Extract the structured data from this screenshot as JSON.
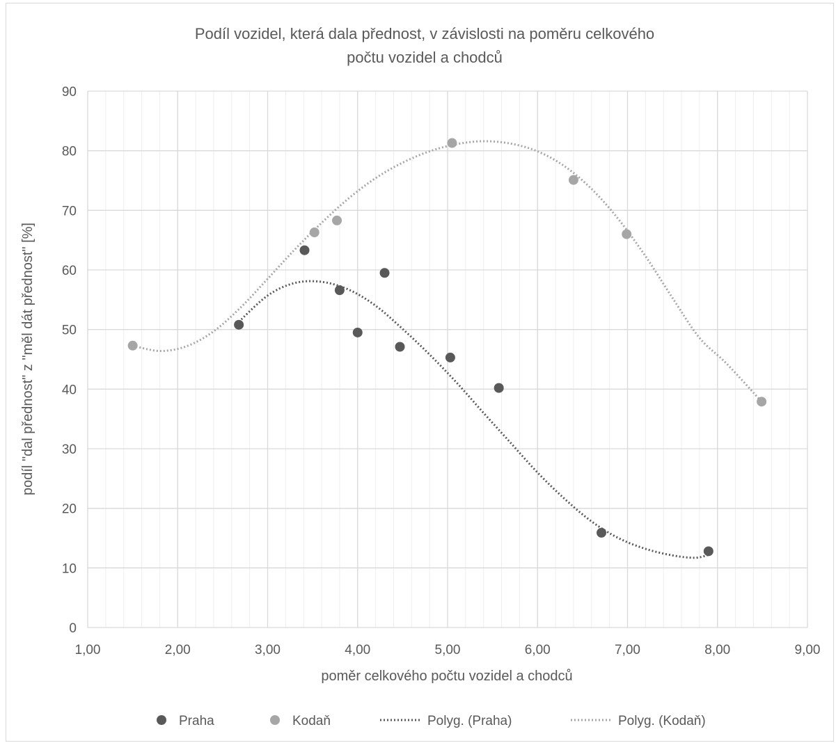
{
  "chart_data": {
    "type": "scatter",
    "title_lines": [
      "Podíl vozidel, která dala přednost, v závislosti na poměru celkového",
      "počtu vozidel a chodců"
    ],
    "xlabel": "poměr celkového počtu vozidel a chodců",
    "ylabel": "podíl \"dal přednost\" z \"měl dát přednost\" [%]",
    "xlim": [
      1,
      9
    ],
    "ylim": [
      0,
      90
    ],
    "x_ticks": [
      1,
      2,
      3,
      4,
      5,
      6,
      7,
      8,
      9
    ],
    "x_tick_labels": [
      "1,00",
      "2,00",
      "3,00",
      "4,00",
      "5,00",
      "6,00",
      "7,00",
      "8,00",
      "9,00"
    ],
    "y_ticks": [
      0,
      10,
      20,
      30,
      40,
      50,
      60,
      70,
      80,
      90
    ],
    "y_tick_labels": [
      "0",
      "10",
      "20",
      "30",
      "40",
      "50",
      "60",
      "70",
      "80",
      "90"
    ],
    "grid": true,
    "legend_position": "bottom",
    "series": [
      {
        "name": "Praha",
        "color": "#595959",
        "points": [
          [
            2.68,
            50.8
          ],
          [
            3.41,
            63.3
          ],
          [
            3.8,
            56.6
          ],
          [
            4.0,
            49.5
          ],
          [
            4.3,
            59.5
          ],
          [
            4.47,
            47.1
          ],
          [
            5.03,
            45.3
          ],
          [
            5.57,
            40.2
          ],
          [
            6.71,
            15.9
          ],
          [
            7.9,
            12.8
          ]
        ]
      },
      {
        "name": "Kodaň",
        "color": "#a6a6a6",
        "points": [
          [
            1.5,
            47.3
          ],
          [
            3.52,
            66.3
          ],
          [
            3.77,
            68.3
          ],
          [
            5.05,
            81.3
          ],
          [
            6.4,
            75.1
          ],
          [
            6.99,
            66.0
          ],
          [
            8.49,
            37.9
          ]
        ]
      }
    ],
    "trendlines": [
      {
        "name": "Polyg. (Praha)",
        "color": "#595959",
        "points": [
          [
            2.68,
            51.3
          ],
          [
            3.0,
            55.7
          ],
          [
            3.3,
            57.8
          ],
          [
            3.6,
            58.0
          ],
          [
            3.9,
            56.7
          ],
          [
            4.2,
            54.0
          ],
          [
            4.5,
            50.1
          ],
          [
            4.8,
            45.8
          ],
          [
            5.1,
            41.1
          ],
          [
            5.4,
            36.0
          ],
          [
            5.7,
            31.0
          ],
          [
            6.0,
            26.0
          ],
          [
            6.3,
            21.6
          ],
          [
            6.6,
            17.8
          ],
          [
            6.9,
            15.0
          ],
          [
            7.2,
            13.2
          ],
          [
            7.5,
            12.1
          ],
          [
            7.75,
            11.7
          ],
          [
            7.9,
            12.2
          ]
        ]
      },
      {
        "name": "Polyg. (Kodaň)",
        "color": "#a6a6a6",
        "points": [
          [
            1.5,
            47.3
          ],
          [
            1.8,
            46.4
          ],
          [
            2.1,
            47.2
          ],
          [
            2.4,
            49.7
          ],
          [
            2.7,
            53.7
          ],
          [
            3.0,
            58.5
          ],
          [
            3.3,
            63.4
          ],
          [
            3.6,
            67.9
          ],
          [
            3.9,
            72.0
          ],
          [
            4.2,
            75.4
          ],
          [
            4.5,
            78.0
          ],
          [
            4.8,
            79.9
          ],
          [
            5.1,
            81.1
          ],
          [
            5.4,
            81.6
          ],
          [
            5.7,
            81.2
          ],
          [
            6.0,
            79.9
          ],
          [
            6.3,
            77.4
          ],
          [
            6.6,
            73.6
          ],
          [
            6.9,
            68.5
          ],
          [
            7.2,
            62.3
          ],
          [
            7.5,
            55.3
          ],
          [
            7.8,
            48.6
          ],
          [
            8.1,
            44.3
          ],
          [
            8.49,
            37.9
          ]
        ]
      }
    ]
  }
}
